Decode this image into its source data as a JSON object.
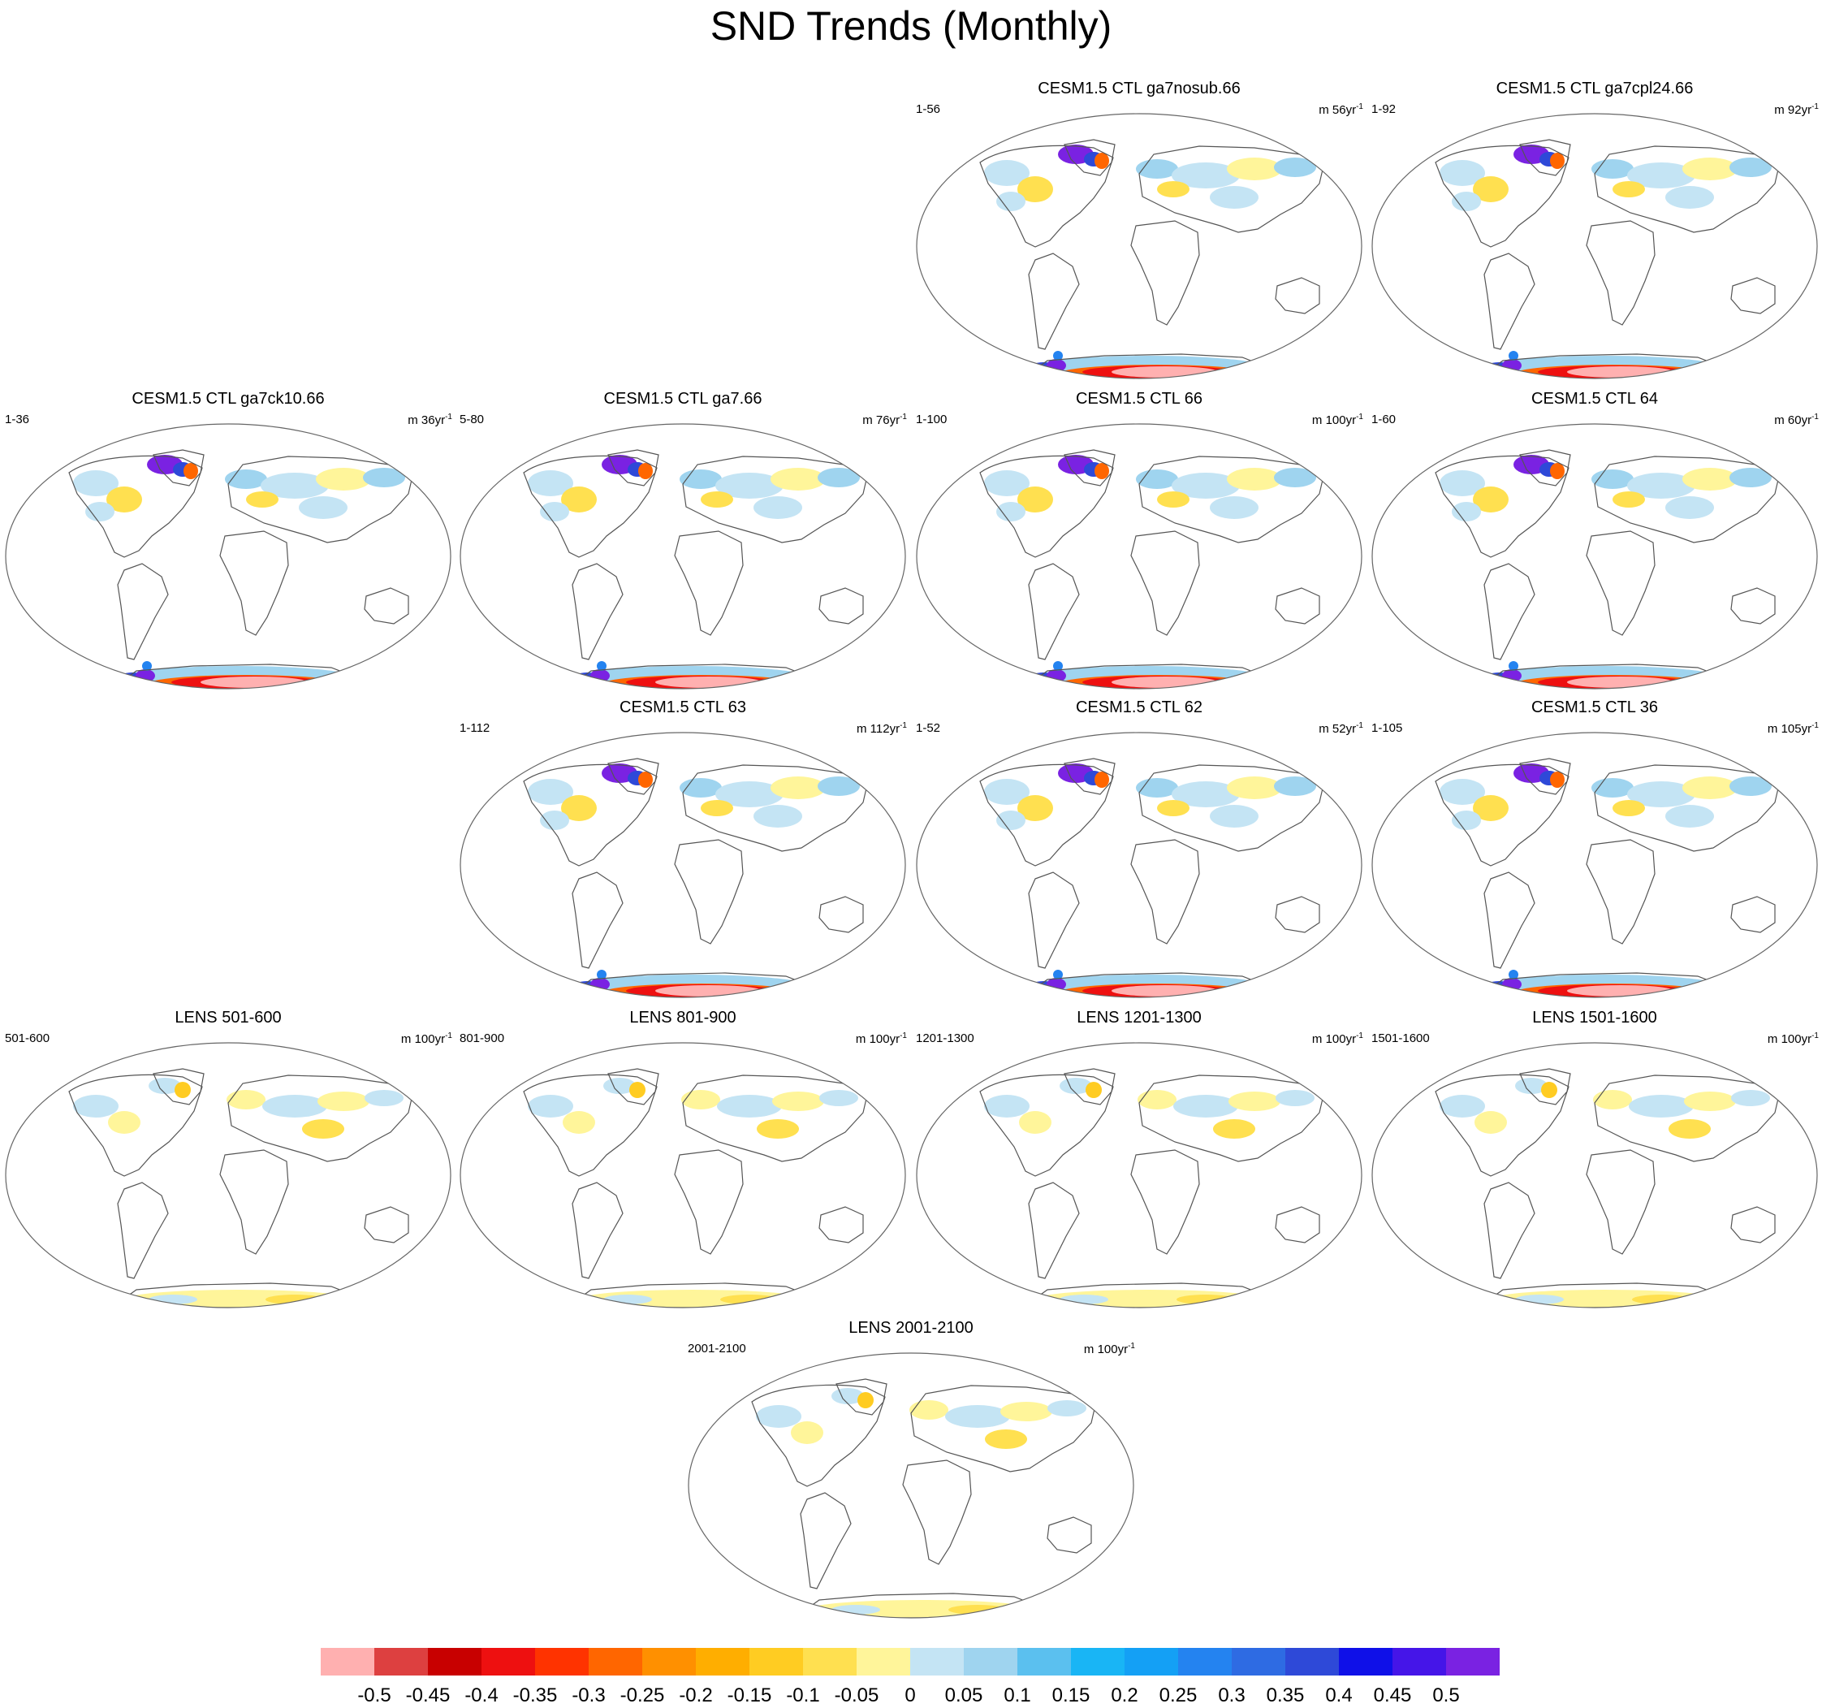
{
  "title": "SND Trends (Monthly)",
  "panels": [
    {
      "title": "CESM1.5 CTL ga7nosub.66",
      "left": "1-56",
      "unit": "m 56yr",
      "sup": "-1",
      "pattern": "strong"
    },
    {
      "title": "CESM1.5 CTL ga7cpl24.66",
      "left": "1-92",
      "unit": "m 92yr",
      "sup": "-1",
      "pattern": "strong"
    },
    {
      "title": "CESM1.5 CTL ga7ck10.66",
      "left": "1-36",
      "unit": "m 36yr",
      "sup": "-1",
      "pattern": "strong"
    },
    {
      "title": "CESM1.5 CTL ga7.66",
      "left": "5-80",
      "unit": "m 76yr",
      "sup": "-1",
      "pattern": "strong"
    },
    {
      "title": "CESM1.5 CTL 66",
      "left": "1-100",
      "unit": "m 100yr",
      "sup": "-1",
      "pattern": "strong"
    },
    {
      "title": "CESM1.5 CTL 64",
      "left": "1-60",
      "unit": "m 60yr",
      "sup": "-1",
      "pattern": "strong"
    },
    {
      "title": "CESM1.5 CTL 63",
      "left": "1-112",
      "unit": "m 112yr",
      "sup": "-1",
      "pattern": "strong"
    },
    {
      "title": "CESM1.5 CTL 62",
      "left": "1-52",
      "unit": "m 52yr",
      "sup": "-1",
      "pattern": "strong"
    },
    {
      "title": "CESM1.5 CTL 36",
      "left": "1-105",
      "unit": "m 105yr",
      "sup": "-1",
      "pattern": "strong"
    },
    {
      "title": "LENS 501-600",
      "left": "501-600",
      "unit": "m 100yr",
      "sup": "-1",
      "pattern": "weak"
    },
    {
      "title": "LENS 801-900",
      "left": "801-900",
      "unit": "m 100yr",
      "sup": "-1",
      "pattern": "weak"
    },
    {
      "title": "LENS 1201-1300",
      "left": "1201-1300",
      "unit": "m 100yr",
      "sup": "-1",
      "pattern": "weak"
    },
    {
      "title": "LENS 1501-1600",
      "left": "1501-1600",
      "unit": "m 100yr",
      "sup": "-1",
      "pattern": "weak"
    },
    {
      "title": "LENS 2001-2100",
      "left": "2001-2100",
      "unit": "m 100yr",
      "sup": "-1",
      "pattern": "weak"
    }
  ],
  "colorbar": {
    "colors": [
      "#ffb0b0",
      "#dd4040",
      "#c80000",
      "#ee1010",
      "#ff3300",
      "#ff6600",
      "#ff9000",
      "#ffae00",
      "#ffcc22",
      "#ffe050",
      "#fff59a",
      "#c4e4f4",
      "#9fd4ef",
      "#5bc0ef",
      "#19b5f5",
      "#14a0f5",
      "#2483f0",
      "#2e6be3",
      "#2e49d8",
      "#0f10e8",
      "#4515e8",
      "#7a22e2"
    ],
    "labels": [
      "-0.5",
      "-0.45",
      "-0.4",
      "-0.35",
      "-0.3",
      "-0.25",
      "-0.2",
      "-0.15",
      "-0.1",
      "-0.05",
      "0",
      "0.05",
      "0.1",
      "0.15",
      "0.2",
      "0.25",
      "0.3",
      "0.35",
      "0.4",
      "0.45",
      "0.5"
    ]
  }
}
